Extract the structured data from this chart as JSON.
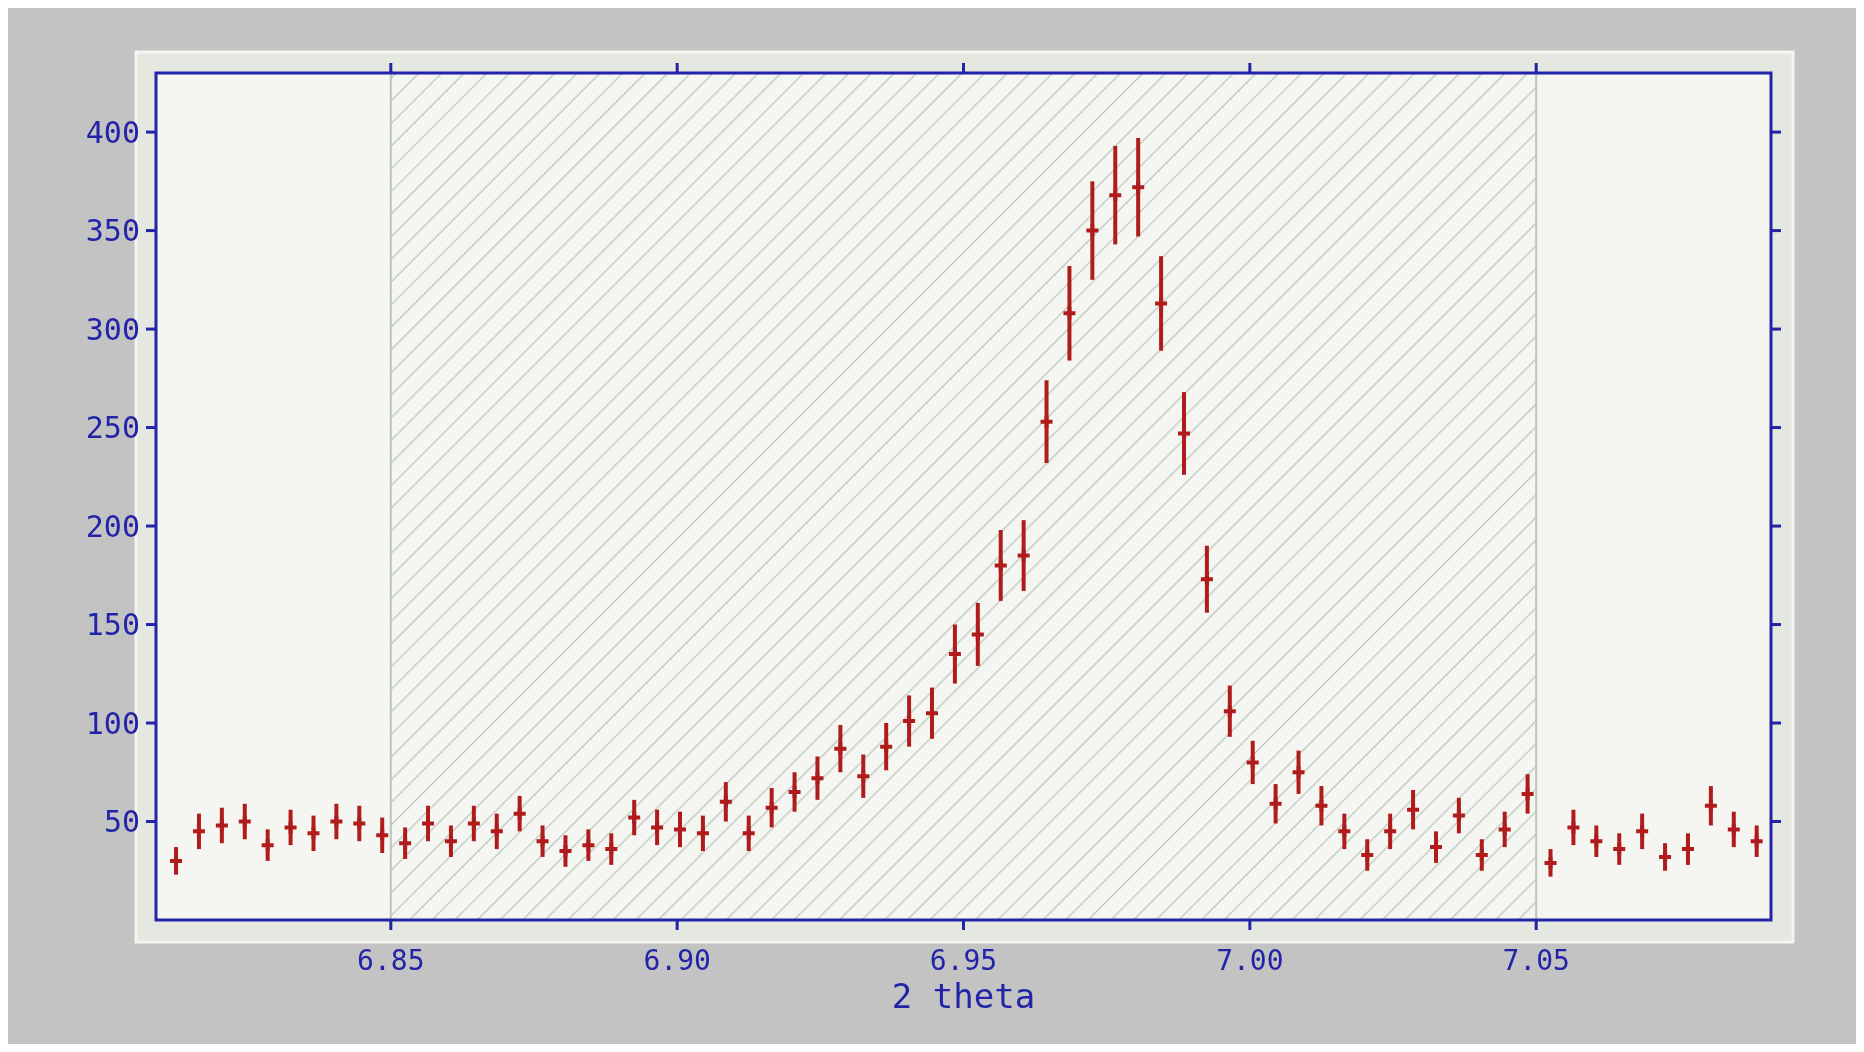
{
  "chart_data": {
    "type": "scatter",
    "xlabel": "2 theta",
    "x": [
      6.8125,
      6.8165,
      6.8205,
      6.8245,
      6.8285,
      6.8325,
      6.8365,
      6.8405,
      6.8445,
      6.8485,
      6.8525,
      6.8565,
      6.8605,
      6.8645,
      6.8685,
      6.8725,
      6.8765,
      6.8805,
      6.8845,
      6.8885,
      6.8925,
      6.8965,
      6.9005,
      6.9045,
      6.9085,
      6.9125,
      6.9165,
      6.9205,
      6.9245,
      6.9285,
      6.9325,
      6.9365,
      6.9405,
      6.9445,
      6.9485,
      6.9525,
      6.9565,
      6.9605,
      6.9645,
      6.9685,
      6.9725,
      6.9765,
      6.9805,
      6.9845,
      6.9885,
      6.9925,
      6.9965,
      7.0005,
      7.0045,
      7.0085,
      7.0125,
      7.0165,
      7.0205,
      7.0245,
      7.0285,
      7.0325,
      7.0365,
      7.0405,
      7.0445,
      7.0485,
      7.0525,
      7.0565,
      7.0605,
      7.0645,
      7.0685,
      7.0725,
      7.0765,
      7.0805,
      7.0845,
      7.0885
    ],
    "series": [
      {
        "color": "#b01c1c",
        "values": [
          30,
          45,
          48,
          50,
          38,
          47,
          44,
          50,
          49,
          43,
          39,
          49,
          40,
          49,
          45,
          54,
          40,
          35,
          38,
          36,
          52,
          47,
          46,
          44,
          60,
          44,
          57,
          65,
          72,
          87,
          73,
          88,
          101,
          105,
          135,
          145,
          180,
          185,
          253,
          308,
          350,
          368,
          372,
          313,
          247,
          173,
          106,
          80,
          59,
          75,
          58,
          45,
          33,
          45,
          56,
          37,
          53,
          33,
          46,
          64,
          29,
          47,
          40,
          36,
          45,
          32,
          36,
          58,
          46,
          40
        ],
        "errors": [
          7,
          9,
          9,
          9,
          8,
          9,
          9,
          9,
          9,
          9,
          8,
          9,
          8,
          9,
          9,
          9,
          8,
          8,
          8,
          8,
          9,
          9,
          9,
          9,
          10,
          9,
          10,
          10,
          11,
          12,
          11,
          12,
          13,
          13,
          15,
          16,
          18,
          18,
          21,
          24,
          25,
          25,
          25,
          24,
          21,
          17,
          13,
          11,
          10,
          11,
          10,
          9,
          8,
          9,
          10,
          8,
          9,
          8,
          9,
          10,
          7,
          9,
          8,
          8,
          9,
          7,
          8,
          10,
          9,
          8
        ]
      }
    ],
    "marker": "cross",
    "xlim": [
      6.809,
      7.091
    ],
    "xticks": [
      {
        "value": 6.85,
        "label": "6.85"
      },
      {
        "value": 6.9,
        "label": "6.90"
      },
      {
        "value": 6.95,
        "label": "6.95"
      },
      {
        "value": 7,
        "label": "7.00"
      },
      {
        "value": 7.05,
        "label": "7.05"
      }
    ],
    "ylim": [
      0,
      430
    ],
    "yticks": [
      50,
      100,
      150,
      200,
      250,
      300,
      350,
      400
    ],
    "bands": [
      {
        "axis": "x",
        "from": 6.85,
        "to": 7.05,
        "color": "#b9c6b9"
      }
    ]
  }
}
